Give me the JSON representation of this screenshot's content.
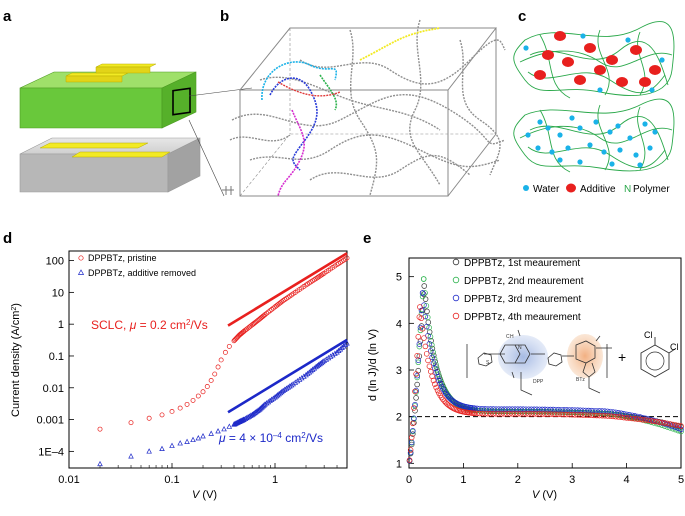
{
  "figure": {
    "panels": {
      "a": {
        "label": "a"
      },
      "b": {
        "label": "b"
      },
      "c": {
        "label": "c",
        "legend": {
          "water": "Water",
          "additive": "Additive",
          "polymer": "Polymer",
          "polymer_symbol": "N"
        }
      },
      "d": {
        "label": "d"
      },
      "e": {
        "label": "e"
      }
    },
    "colors": {
      "red": "#e8201e",
      "blue": "#1c28c8",
      "green": "#2bb24c",
      "grey": "#7a7a7a",
      "cyan": "#1ab2e8"
    }
  },
  "chart_data": [
    {
      "panel": "d",
      "type": "scatter",
      "xscale": "log",
      "yscale": "log",
      "xlabel_italic": "V",
      "xlabel_unit": " (V)",
      "ylabel": "Current density (A/cm",
      "ylabel_sup": "2",
      "ylabel_end": ")",
      "xlim": [
        0.01,
        5
      ],
      "ylim": [
        3e-05,
        200
      ],
      "xticks": [
        {
          "v": 0.01,
          "label": "0.01"
        },
        {
          "v": 0.1,
          "label": "0.1"
        },
        {
          "v": 1,
          "label": "1"
        }
      ],
      "yticks": [
        {
          "v": 0.0001,
          "label": "1E–4"
        },
        {
          "v": 0.001,
          "label": "0.001"
        },
        {
          "v": 0.01,
          "label": "0.01"
        },
        {
          "v": 0.1,
          "label": "0.1"
        },
        {
          "v": 1,
          "label": "1"
        },
        {
          "v": 10,
          "label": "10"
        },
        {
          "v": 100,
          "label": "100"
        }
      ],
      "legend": [
        {
          "name": "DPPBTz, pristine",
          "marker": "circle",
          "color": "#e8201e"
        },
        {
          "name": "DPPBTz, additive removed",
          "marker": "triangle",
          "color": "#1c28c8"
        }
      ],
      "series": [
        {
          "name": "DPPBTz, pristine",
          "x": [
            0.02,
            0.04,
            0.06,
            0.08,
            0.1,
            0.12,
            0.14,
            0.16,
            0.18,
            0.2,
            0.22,
            0.24,
            0.26,
            0.28,
            0.3,
            0.33,
            0.36,
            0.4,
            0.45,
            0.5,
            0.6,
            0.7,
            0.8,
            1.0,
            1.2,
            1.5,
            2.0,
            2.5,
            3.0,
            4.0,
            5.0
          ],
          "y": [
            0.0005,
            0.0008,
            0.0011,
            0.0014,
            0.0018,
            0.0023,
            0.003,
            0.004,
            0.0055,
            0.0075,
            0.011,
            0.017,
            0.027,
            0.045,
            0.075,
            0.13,
            0.2,
            0.3,
            0.45,
            0.6,
            0.95,
            1.4,
            2.0,
            3.5,
            5.5,
            9.0,
            17,
            27,
            40,
            75,
            120
          ]
        },
        {
          "name": "DPPBTz, additive removed",
          "x": [
            0.02,
            0.04,
            0.06,
            0.08,
            0.1,
            0.12,
            0.14,
            0.16,
            0.18,
            0.2,
            0.24,
            0.28,
            0.32,
            0.36,
            0.4,
            0.45,
            0.5,
            0.6,
            0.7,
            0.8,
            1.0,
            1.2,
            1.5,
            2.0,
            2.5,
            3.0,
            4.0,
            5.0
          ],
          "y": [
            4e-05,
            7e-05,
            0.0001,
            0.00012,
            0.00015,
            0.00018,
            0.0002,
            0.00023,
            0.00026,
            0.0003,
            0.00036,
            0.00043,
            0.0005,
            0.0006,
            0.0007,
            0.00085,
            0.001,
            0.0014,
            0.002,
            0.003,
            0.005,
            0.008,
            0.013,
            0.025,
            0.045,
            0.07,
            0.13,
            0.25
          ]
        }
      ],
      "fits": [
        {
          "name": "SCLC fit (red)",
          "x": [
            0.35,
            5.0
          ],
          "y": [
            0.9,
            170
          ],
          "color": "#e8201e"
        },
        {
          "name": "SCLC fit (blue)",
          "x": [
            0.35,
            5.0
          ],
          "y": [
            0.0017,
            0.32
          ],
          "color": "#1c28c8"
        }
      ],
      "annotations": {
        "red": {
          "pre": "SCLC, ",
          "mu": "μ",
          "mid": " = 0.2 cm",
          "sup": "2",
          "post": "/Vs"
        },
        "blue": {
          "mu": "μ",
          "mid": " = 4 × 10",
          "sup": "–4",
          "mid2": " cm",
          "sup2": "2",
          "post": "/Vs"
        }
      }
    },
    {
      "panel": "e",
      "type": "scatter",
      "xlabel_italic": "V",
      "xlabel_unit": " (V)",
      "ylabel": "d (ln J)/d (ln V)",
      "xlim": [
        0,
        5
      ],
      "ylim": [
        0.9,
        5.4
      ],
      "xticks": [
        0,
        1,
        2,
        3,
        4,
        5
      ],
      "yticks": [
        1,
        2,
        3,
        4,
        5
      ],
      "reference_line": {
        "y": 2,
        "style": "dashed"
      },
      "legend": [
        {
          "name": "DPPBTz, 1st meaurement",
          "color": "#333333"
        },
        {
          "name": "DPPBTz, 2nd meaurement",
          "color": "#2bb24c"
        },
        {
          "name": "DPPBTz, 3rd meaurement",
          "color": "#1c28c8"
        },
        {
          "name": "DPPBTz, 4th meaurement",
          "color": "#e8201e"
        }
      ],
      "series": [
        {
          "name": "DPPBTz, 1st meaurement",
          "peak_x": 0.28,
          "peak_y": 4.8,
          "plateau": 2.05,
          "end_y": 1.78
        },
        {
          "name": "DPPBTz, 2nd meaurement",
          "peak_x": 0.27,
          "peak_y": 4.95,
          "plateau": 2.05,
          "end_y": 1.68
        },
        {
          "name": "DPPBTz, 3rd meaurement",
          "peak_x": 0.25,
          "peak_y": 4.65,
          "plateau": 2.1,
          "end_y": 1.73
        },
        {
          "name": "DPPBTz, 4th meaurement",
          "peak_x": 0.2,
          "peak_y": 4.35,
          "plateau": 2.0,
          "end_y": 1.8
        }
      ],
      "inset": {
        "labels": [
          "C",
          "H",
          "N",
          "S",
          "DPP",
          "BTz",
          "Cl",
          "Cl",
          "+"
        ]
      }
    }
  ]
}
